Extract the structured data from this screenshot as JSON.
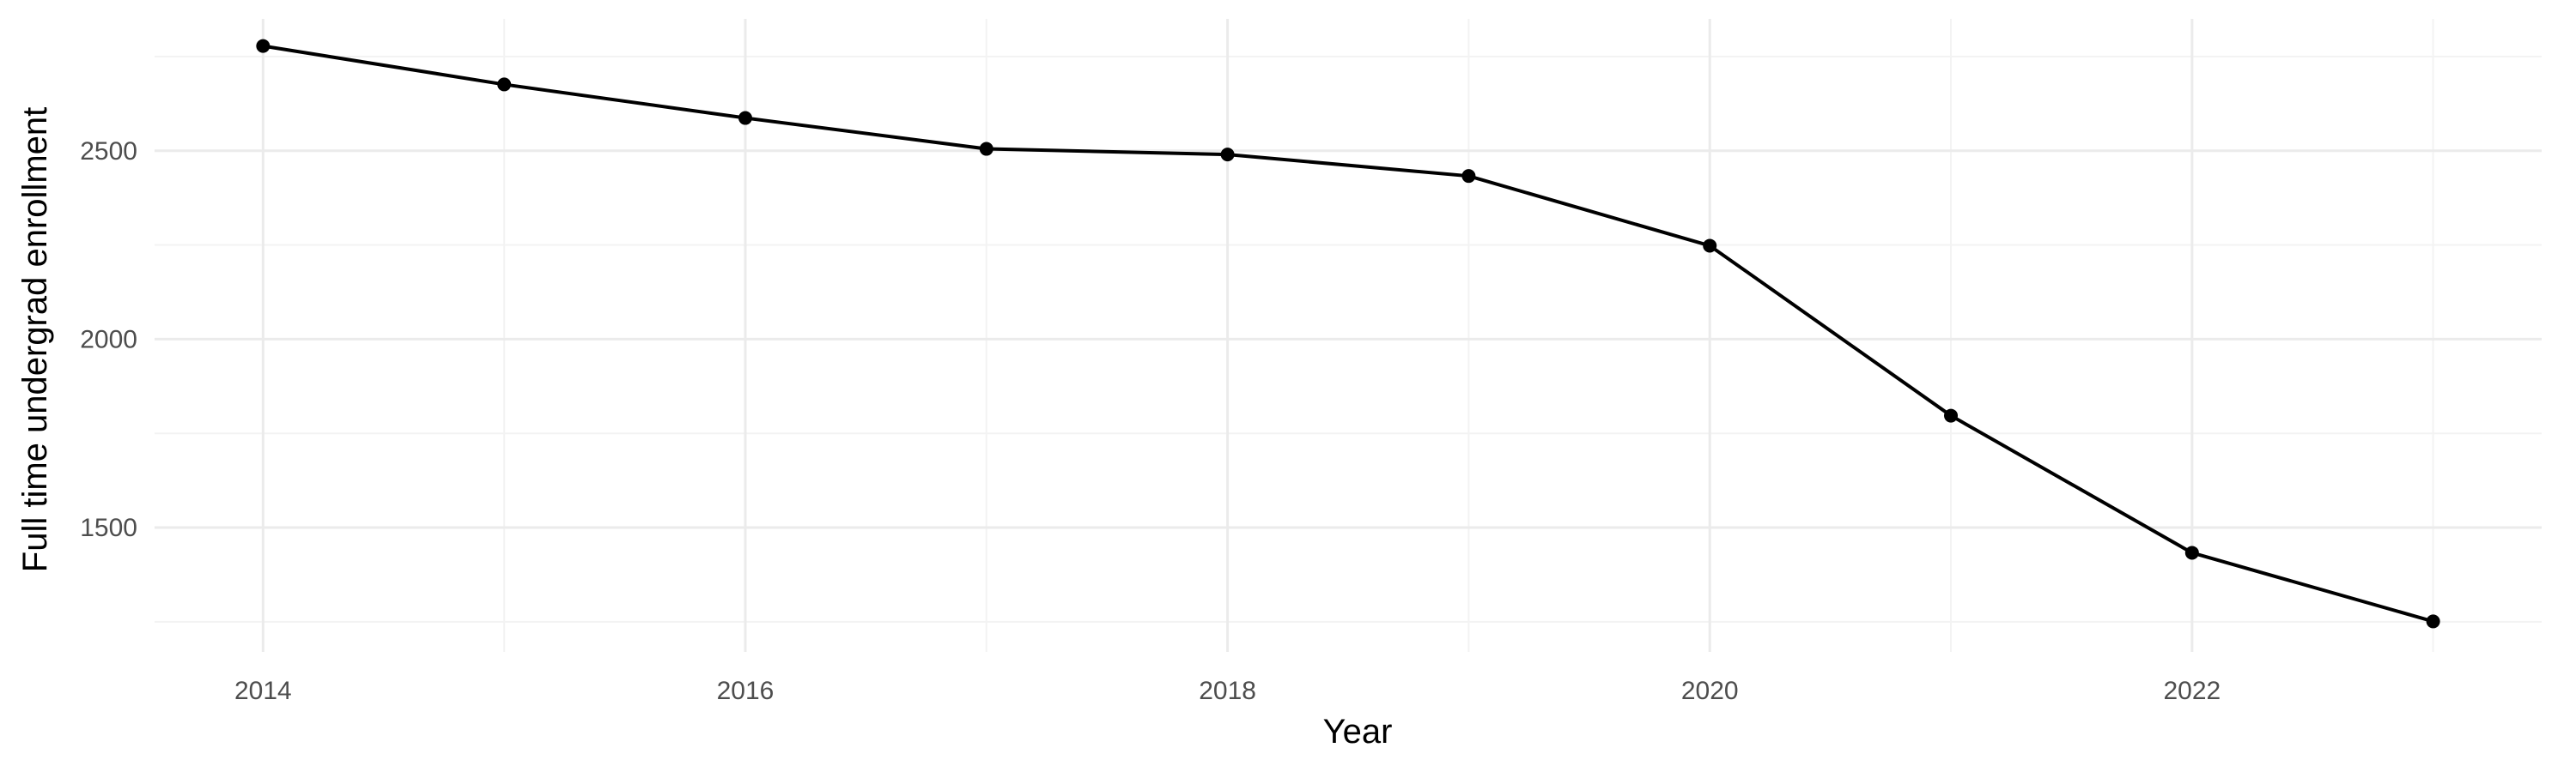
{
  "chart_data": {
    "type": "line",
    "title": "",
    "xlabel": "Year",
    "ylabel": "Full time undergrad enrollment",
    "x": [
      2014,
      2015,
      2016,
      2017,
      2018,
      2019,
      2020,
      2021,
      2022,
      2023
    ],
    "series": [
      {
        "values": [
          2778,
          2676,
          2587,
          2505,
          2490,
          2433,
          2248,
          1797,
          1433,
          1251
        ]
      }
    ],
    "xlim": [
      2013.55,
      2023.45
    ],
    "ylim": [
      1170,
      2850
    ],
    "x_ticks": [
      2014,
      2016,
      2018,
      2020,
      2022
    ],
    "x_tick_labels": [
      "2014",
      "2016",
      "2018",
      "2020",
      "2022"
    ],
    "x_minor_ticks": [
      2015,
      2017,
      2019,
      2021,
      2023
    ],
    "y_ticks": [
      1500,
      2000,
      2500
    ],
    "y_tick_labels": [
      "1500",
      "2000",
      "2500"
    ],
    "y_minor_ticks": [
      1250,
      1750,
      2250,
      2750
    ],
    "grid": true,
    "legend": "none",
    "colors": {
      "line": "#000000",
      "point": "#000000",
      "grid_major": "#ebebeb",
      "grid_minor": "#f3f3f3",
      "tick_label": "#4d4d4d",
      "axis_title": "#000000"
    }
  }
}
